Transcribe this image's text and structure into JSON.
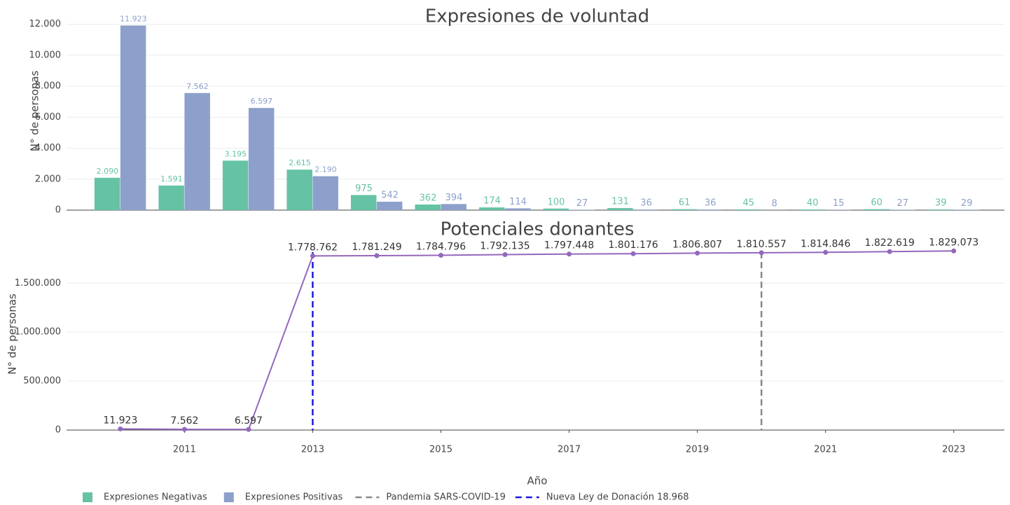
{
  "chart_data": [
    {
      "type": "bar",
      "title": "Expresiones de voluntad",
      "ylabel": "N° de personas",
      "x": [
        2010,
        2011,
        2012,
        2013,
        2014,
        2015,
        2016,
        2017,
        2018,
        2019,
        2020,
        2021,
        2022,
        2023
      ],
      "xlim": [
        2009.16,
        2023.79
      ],
      "ylim": [
        0,
        12800
      ],
      "yticks": [
        0,
        {
          "value": 2000,
          "label": "2.000"
        },
        {
          "value": 4000,
          "label": "4.000"
        },
        {
          "value": 6000,
          "label": "6.000"
        },
        {
          "value": 8000,
          "label": "8.000"
        },
        {
          "value": 10000,
          "label": "10.000"
        },
        {
          "value": 12000,
          "label": "12.000"
        }
      ],
      "grid": true,
      "series": [
        {
          "name": "Expresiones Negativas",
          "color": "#66c2a5",
          "values": [
            2090,
            1591,
            3195,
            2615,
            975,
            362,
            174,
            100,
            131,
            61,
            45,
            40,
            60,
            39
          ],
          "value_labels": [
            "2.090",
            "1.591",
            "3.195",
            "2.615",
            "975",
            "362",
            "174",
            "100",
            "131",
            "61",
            "45",
            "40",
            "60",
            "39"
          ]
        },
        {
          "name": "Expresiones Positivas",
          "color": "#8da0cb",
          "values": [
            11923,
            7562,
            6597,
            2190,
            542,
            394,
            114,
            27,
            36,
            36,
            8,
            15,
            27,
            29
          ],
          "value_labels": [
            "11.923",
            "7.562",
            "6.597",
            "2.190",
            "542",
            "394",
            "114",
            "27",
            "36",
            "36",
            "8",
            "15",
            "27",
            "29"
          ]
        }
      ]
    },
    {
      "type": "line",
      "title": "Potenciales donantes",
      "ylabel": "N° de personas",
      "xlabel": "Año",
      "x": [
        2010,
        2011,
        2012,
        2013,
        2014,
        2015,
        2016,
        2017,
        2018,
        2019,
        2020,
        2021,
        2022,
        2023
      ],
      "values": [
        11923,
        7562,
        6597,
        1778762,
        1781249,
        1784796,
        1792135,
        1797448,
        1801176,
        1806807,
        1810557,
        1814846,
        1822619,
        1829073
      ],
      "value_labels": [
        "11.923",
        "7.562",
        "6.597",
        "1.778.762",
        "1.781.249",
        "1.784.796",
        "1.792.135",
        "1.797.448",
        "1.801.176",
        "1.806.807",
        "1.810.557",
        "1.814.846",
        "1.822.619",
        "1.829.073"
      ],
      "color": "#9467bd",
      "xlim": [
        2009.16,
        2023.79
      ],
      "xticks": [
        2011,
        2013,
        2015,
        2017,
        2019,
        2021,
        2023
      ],
      "ylim": [
        0,
        1960000
      ],
      "yticks": [
        0,
        {
          "value": 500000,
          "label": "500.000"
        },
        {
          "value": 1000000,
          "label": "1.000.000"
        },
        {
          "value": 1500000,
          "label": "1.500.000"
        }
      ],
      "grid": true,
      "vlines": [
        {
          "name": "Pandemia SARS-COVID-19",
          "x": 2020,
          "color": "#888888"
        },
        {
          "name": "Nueva Ley de Donación 18.968",
          "x": 2013,
          "color": "#1a1adb"
        }
      ]
    }
  ]
}
